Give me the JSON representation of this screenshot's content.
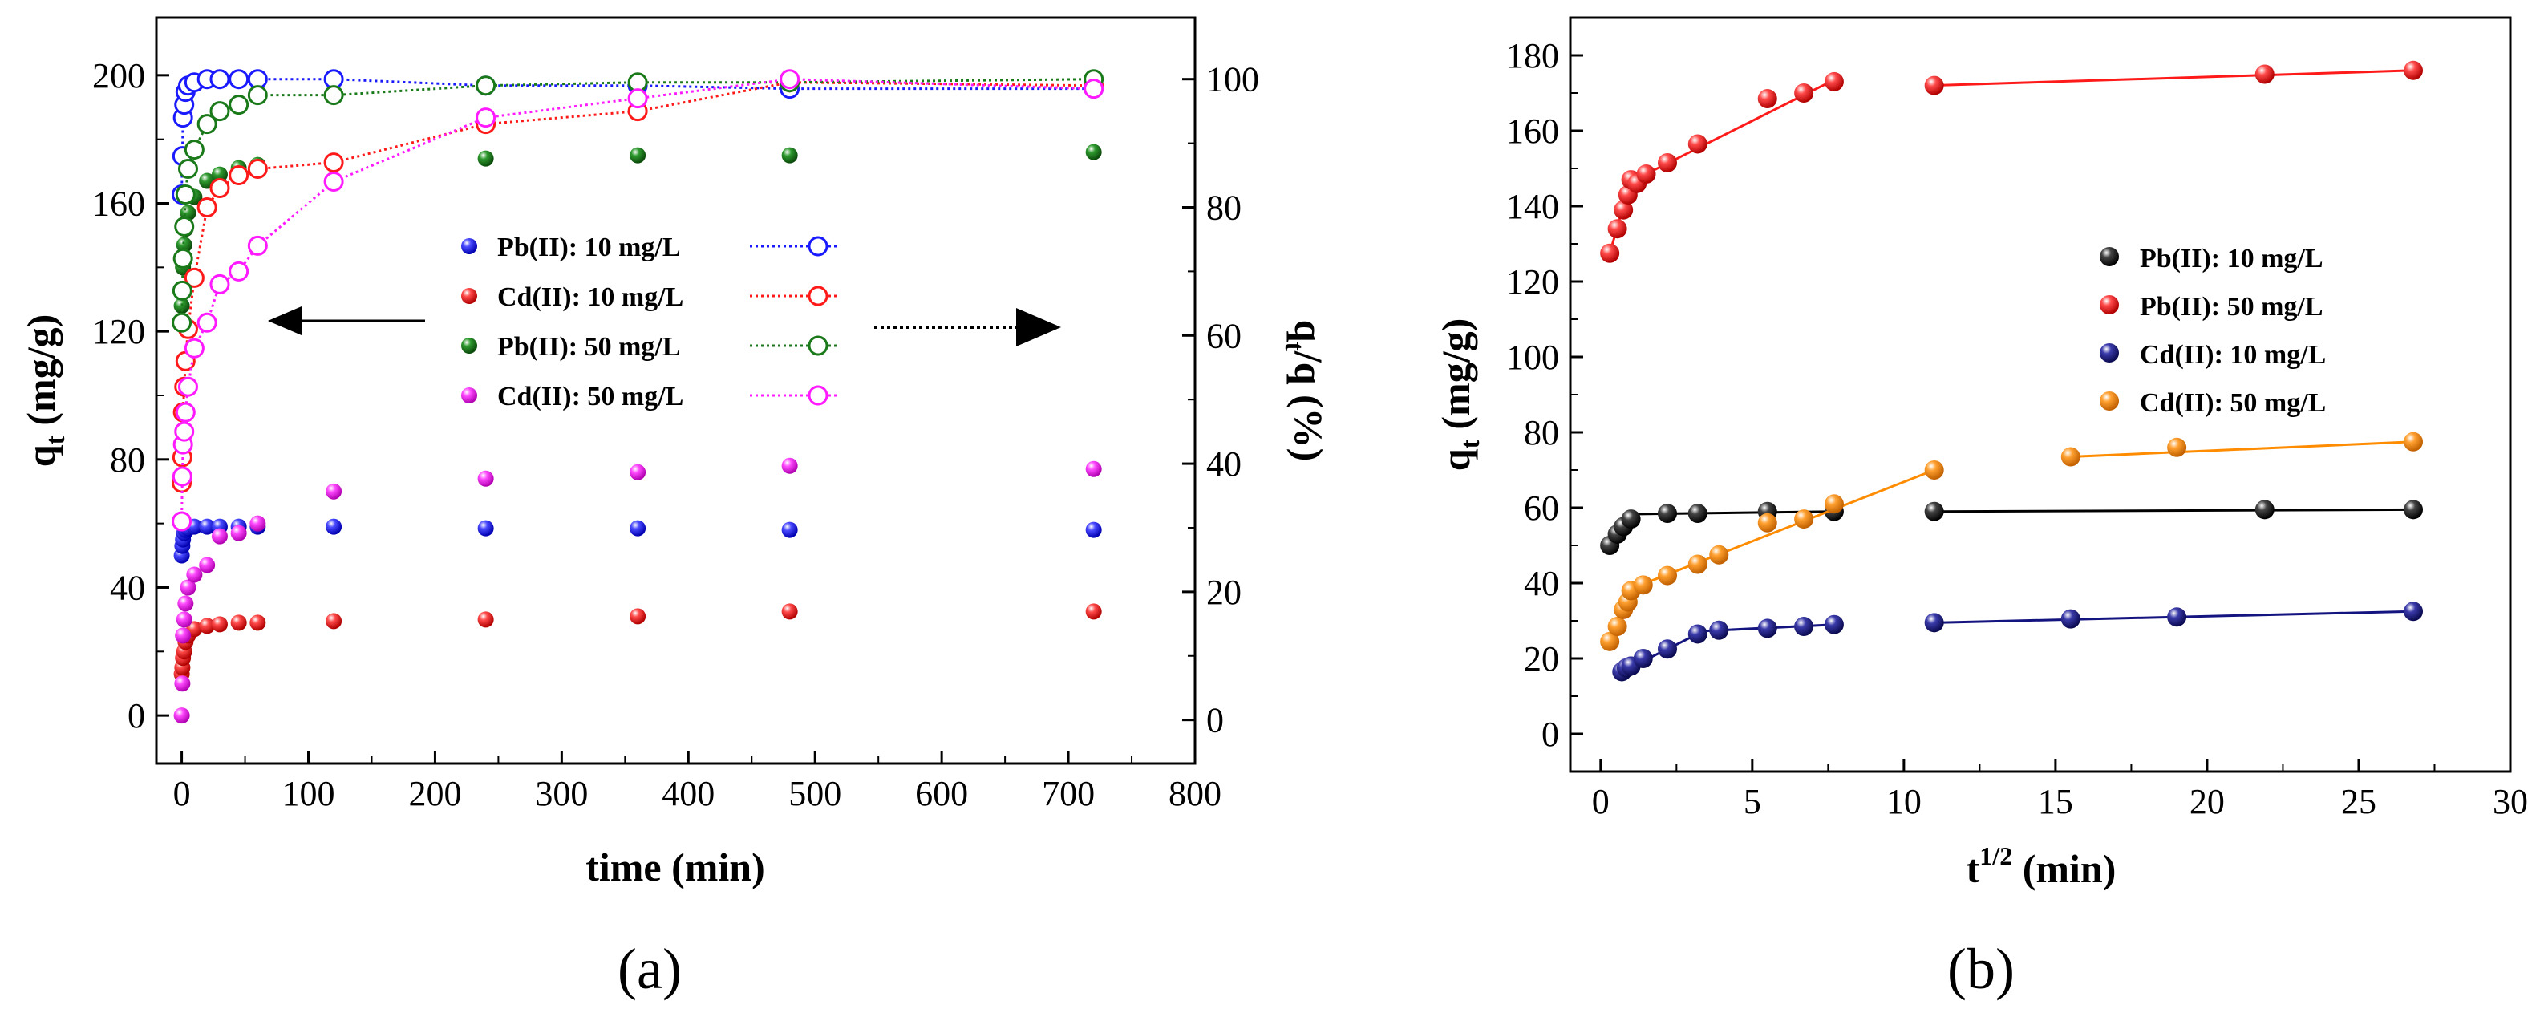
{
  "figure": {
    "panel_a_label": "(a)",
    "panel_b_label": "(b)"
  },
  "chart_data": [
    {
      "panel": "(a)",
      "type": "scatter",
      "xlabel": "time (min)",
      "ylabel": "q_t (mg/g)",
      "ylabel_main": "q",
      "ylabel_sub": "t",
      "ylabel_rest": " (mg/g)",
      "y2label": "q_t/q (%)",
      "y2label_p1": "q",
      "y2label_sub": "t",
      "y2label_p2": "/q (%)",
      "xlim": [
        -20,
        800
      ],
      "ylim": [
        -15,
        218
      ],
      "y2lim": [
        -6.8,
        109.6
      ],
      "xticks": [
        0,
        100,
        200,
        300,
        400,
        500,
        600,
        700,
        800
      ],
      "yticks": [
        0,
        40,
        80,
        120,
        160,
        200
      ],
      "y2ticks": [
        0,
        20,
        40,
        60,
        80,
        100
      ],
      "grid": false,
      "legend_position": "center",
      "arrows": [
        {
          "points_to": "left axis",
          "style": "solid"
        },
        {
          "points_to": "right axis",
          "style": "dotted"
        }
      ],
      "series": [
        {
          "name": "Pb(II): 10 mg/L",
          "color": "#1a1aff",
          "axis": "left",
          "marker": "filled",
          "x": [
            0,
            0.5,
            1,
            2,
            3,
            5,
            10,
            20,
            30,
            45,
            60,
            120,
            240,
            360,
            480,
            720
          ],
          "y": [
            50,
            53,
            55,
            57,
            58,
            58.5,
            59,
            59,
            59,
            59,
            59,
            59,
            58.5,
            58.5,
            58,
            58
          ]
        },
        {
          "name": "Cd(II): 10 mg/L",
          "color": "#ff1a1a",
          "axis": "left",
          "marker": "filled",
          "x": [
            0,
            0.5,
            1,
            2,
            3,
            5,
            10,
            20,
            30,
            45,
            60,
            120,
            240,
            360,
            480,
            720
          ],
          "y": [
            13,
            15,
            18,
            20,
            23,
            25,
            27,
            28,
            28.5,
            29,
            29,
            29.5,
            30,
            31,
            32.5,
            32.5
          ]
        },
        {
          "name": "Pb(II): 50 mg/L",
          "color": "#1a7a1a",
          "axis": "left",
          "marker": "filled",
          "x": [
            0,
            0.5,
            1,
            2,
            3,
            5,
            10,
            20,
            30,
            45,
            60,
            120,
            240,
            360,
            480,
            720
          ],
          "y": [
            128,
            133,
            140,
            147,
            152,
            157,
            162,
            167,
            169,
            171,
            172,
            173,
            174,
            175,
            175,
            176
          ]
        },
        {
          "name": "Cd(II): 50 mg/L",
          "color": "#ff1aff",
          "axis": "left",
          "marker": "filled",
          "x": [
            0,
            0.5,
            1,
            2,
            3,
            5,
            10,
            20,
            30,
            45,
            60,
            120,
            240,
            360,
            480,
            720
          ],
          "y": [
            0,
            10,
            25,
            30,
            35,
            40,
            44,
            47,
            56,
            57,
            60,
            70,
            74,
            76,
            78,
            77
          ]
        },
        {
          "name": "Pb(II): 10 mg/L",
          "color": "#1a1aff",
          "axis": "right",
          "marker": "open",
          "line": "dotted",
          "x": [
            0,
            0.5,
            1,
            2,
            3,
            5,
            10,
            20,
            30,
            45,
            60,
            120,
            240,
            360,
            480,
            720
          ],
          "y": [
            82,
            88,
            94,
            96,
            98,
            99,
            99.5,
            100,
            100,
            100,
            100,
            100,
            99,
            99,
            98.5,
            98.5
          ]
        },
        {
          "name": "Cd(II): 10 mg/L",
          "color": "#ff1a1a",
          "axis": "right",
          "marker": "open",
          "line": "dotted",
          "x": [
            0,
            0.5,
            1,
            2,
            3,
            5,
            10,
            20,
            30,
            45,
            60,
            120,
            240,
            360,
            480,
            720
          ],
          "y": [
            37,
            41,
            48,
            52,
            56,
            61,
            69,
            80,
            83,
            85,
            86,
            87,
            93,
            95,
            99.5,
            99
          ]
        },
        {
          "name": "Pb(II): 50 mg/L",
          "color": "#1a7a1a",
          "axis": "right",
          "marker": "open",
          "line": "dotted",
          "x": [
            0,
            0.5,
            1,
            2,
            3,
            5,
            10,
            20,
            30,
            45,
            60,
            120,
            240,
            360,
            480,
            720
          ],
          "y": [
            62,
            67,
            72,
            77,
            82,
            86,
            89,
            93,
            95,
            96,
            97.5,
            97.5,
            99,
            99.5,
            99.5,
            100
          ]
        },
        {
          "name": "Cd(II): 50 mg/L",
          "color": "#ff1aff",
          "axis": "right",
          "marker": "open",
          "line": "dotted",
          "x": [
            0,
            0.5,
            1,
            2,
            3,
            5,
            10,
            20,
            30,
            45,
            60,
            120,
            240,
            360,
            480,
            720
          ],
          "y": [
            31,
            38,
            43,
            45,
            48,
            52,
            58,
            62,
            68,
            70,
            74,
            84,
            94,
            97,
            100,
            98.5
          ]
        }
      ]
    },
    {
      "panel": "(b)",
      "type": "scatter",
      "xlabel": "t^1/2 (min)",
      "xlabel_main": "t",
      "xlabel_sup": "1/2",
      "xlabel_rest": " (min)",
      "ylabel": "q_t (mg/g)",
      "ylabel_main": "q",
      "ylabel_sub": "t",
      "ylabel_rest": " (mg/g)",
      "xlim": [
        -1,
        30
      ],
      "ylim": [
        -10,
        190
      ],
      "xticks": [
        0,
        5,
        10,
        15,
        20,
        25,
        30
      ],
      "yticks": [
        0,
        20,
        40,
        60,
        80,
        100,
        120,
        140,
        160,
        180
      ],
      "grid": false,
      "legend_position": "center-right",
      "series": [
        {
          "name": "Pb(II):  10 mg/L",
          "color": "#000000",
          "x": [
            0.3,
            0.55,
            0.75,
            1.0,
            2.2,
            3.2,
            5.5,
            7.7,
            11.0,
            21.9,
            26.8
          ],
          "y": [
            50,
            53,
            55,
            57,
            58.5,
            58.5,
            59,
            59,
            59,
            59.5,
            59.5
          ],
          "fit_segments": [
            [
              [
                0.3,
                50
              ],
              [
                1.0,
                57
              ]
            ],
            [
              [
                1.0,
                58.3
              ],
              [
                7.7,
                59
              ]
            ],
            [
              [
                11.0,
                59
              ],
              [
                26.8,
                59.5
              ]
            ]
          ]
        },
        {
          "name": "Pb(II):  50 mg/L",
          "color": "#ff1a1a",
          "x": [
            0.3,
            0.55,
            0.75,
            0.9,
            1.0,
            1.2,
            1.5,
            2.2,
            3.2,
            5.5,
            6.7,
            7.7,
            11.0,
            21.9,
            26.8
          ],
          "y": [
            127.5,
            134,
            139,
            143,
            147,
            146,
            148.5,
            151.5,
            156.5,
            168.5,
            170,
            173,
            172,
            175,
            176
          ],
          "fit_segments": [
            [
              [
                0.3,
                127.5
              ],
              [
                1.0,
                147
              ]
            ],
            [
              [
                1.0,
                146.5
              ],
              [
                7.7,
                173.5
              ]
            ],
            [
              [
                11.0,
                172
              ],
              [
                26.8,
                176
              ]
            ]
          ]
        },
        {
          "name": "Cd(II):  10 mg/L",
          "color": "#141480",
          "x": [
            0.7,
            0.85,
            1.0,
            1.4,
            2.2,
            3.2,
            3.9,
            5.5,
            6.7,
            7.7,
            11.0,
            15.5,
            19.0,
            26.8
          ],
          "y": [
            16.5,
            17.5,
            18,
            20,
            22.5,
            26.5,
            27.5,
            28,
            28.5,
            29,
            29.5,
            30.5,
            31,
            32.5
          ],
          "fit_segments": [
            [
              [
                0.7,
                16.5
              ],
              [
                3.2,
                26.5
              ]
            ],
            [
              [
                3.2,
                27.2
              ],
              [
                7.7,
                29
              ]
            ],
            [
              [
                11.0,
                29.5
              ],
              [
                26.8,
                32.5
              ]
            ]
          ]
        },
        {
          "name": "Cd(II):  50 mg/L",
          "color": "#ff8c00",
          "x": [
            0.3,
            0.55,
            0.75,
            0.9,
            1.0,
            1.4,
            2.2,
            3.2,
            3.9,
            5.5,
            6.7,
            7.7,
            11.0,
            15.5,
            19.0,
            26.8
          ],
          "y": [
            24.5,
            28.5,
            33,
            35,
            38,
            39.5,
            42,
            45,
            47.5,
            56,
            57,
            61,
            70,
            73.5,
            76,
            77.5
          ],
          "fit_segments": [
            [
              [
                0.3,
                24.5
              ],
              [
                1.0,
                38
              ]
            ],
            [
              [
                1.0,
                38.5
              ],
              [
                11.0,
                70
              ]
            ],
            [
              [
                15.5,
                73.5
              ],
              [
                26.8,
                77.5
              ]
            ]
          ]
        }
      ]
    }
  ]
}
